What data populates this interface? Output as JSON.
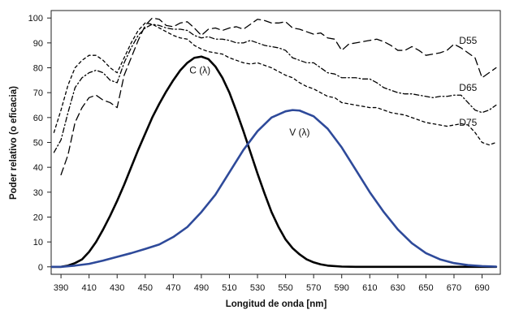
{
  "chart_data": {
    "type": "line",
    "title": "",
    "xlabel": "Longitud de onda [nm]",
    "ylabel": "Poder relativo (o eficacia)",
    "xlim": [
      383,
      703
    ],
    "ylim": [
      -3,
      103
    ],
    "grid": false,
    "legend": "none",
    "x_ticks": [
      390,
      410,
      430,
      450,
      470,
      490,
      510,
      530,
      550,
      570,
      590,
      610,
      630,
      650,
      670,
      690
    ],
    "y_ticks": [
      0,
      10,
      20,
      30,
      40,
      50,
      60,
      70,
      80,
      90,
      100
    ],
    "annotations": [
      {
        "id": "C",
        "text": "C (λ)",
        "x": 489,
        "y": 79
      },
      {
        "id": "V",
        "text": "V (λ)",
        "x": 560,
        "y": 54
      },
      {
        "id": "D55",
        "text": "D55",
        "x": 680,
        "y": 91
      },
      {
        "id": "D65",
        "text": "D65",
        "x": 680,
        "y": 72
      },
      {
        "id": "D75",
        "text": "D75",
        "x": 680,
        "y": 58
      }
    ],
    "series": [
      {
        "id": "C",
        "color": "#000000",
        "dash": "solid",
        "x": [
          380,
          390,
          395,
          400,
          405,
          410,
          415,
          420,
          425,
          430,
          435,
          440,
          445,
          450,
          455,
          460,
          465,
          470,
          475,
          480,
          485,
          490,
          495,
          500,
          505,
          510,
          515,
          520,
          525,
          530,
          535,
          540,
          545,
          550,
          555,
          560,
          565,
          570,
          575,
          580,
          590,
          600,
          620,
          650,
          680,
          700
        ],
        "y": [
          0,
          0,
          0.5,
          1.5,
          3,
          6,
          10,
          15,
          20.5,
          26.5,
          33,
          40,
          47,
          53.5,
          60,
          65.5,
          70.5,
          75,
          79,
          82,
          84,
          84.5,
          83.5,
          80.5,
          76,
          70,
          62.5,
          54.5,
          46,
          37.5,
          29.5,
          22,
          16,
          11,
          7.5,
          5,
          3,
          1.8,
          1,
          0.5,
          0.1,
          0,
          0,
          0,
          0,
          0
        ]
      },
      {
        "id": "V",
        "color": "#2e4a9a",
        "dash": "solid",
        "x": [
          380,
          390,
          400,
          410,
          420,
          430,
          440,
          450,
          460,
          470,
          480,
          490,
          500,
          510,
          520,
          530,
          540,
          550,
          555,
          560,
          570,
          580,
          590,
          600,
          610,
          620,
          630,
          640,
          650,
          660,
          670,
          680,
          690,
          700
        ],
        "y": [
          0,
          0,
          0.5,
          1.2,
          2.5,
          4,
          5.5,
          7.2,
          9,
          12,
          16,
          22,
          29,
          38,
          47,
          54.5,
          60,
          62.5,
          63,
          62.8,
          60.5,
          55.5,
          48,
          39,
          30,
          22,
          15,
          9.5,
          5.5,
          3,
          1.5,
          0.7,
          0.3,
          0.1
        ]
      },
      {
        "id": "D55",
        "color": "#000000",
        "dash": "long-dash",
        "x": [
          390,
          395,
          400,
          405,
          410,
          415,
          420,
          425,
          430,
          435,
          440,
          445,
          450,
          455,
          460,
          465,
          470,
          475,
          480,
          485,
          490,
          495,
          500,
          505,
          510,
          515,
          520,
          525,
          530,
          535,
          540,
          545,
          550,
          555,
          560,
          565,
          570,
          575,
          580,
          585,
          590,
          595,
          600,
          605,
          610,
          615,
          620,
          625,
          630,
          635,
          640,
          645,
          650,
          655,
          660,
          665,
          670,
          675,
          680,
          685,
          690,
          695,
          700
        ],
        "y": [
          37,
          45,
          58,
          64,
          68,
          69,
          67,
          66,
          64,
          77,
          84,
          91,
          97,
          100,
          99.5,
          97,
          96.5,
          98,
          98.5,
          96,
          93,
          95.5,
          96,
          95,
          96,
          96.5,
          95.5,
          97.5,
          99.5,
          99,
          98,
          98,
          98.5,
          96,
          95.5,
          94.5,
          93.5,
          94,
          92,
          91.5,
          87,
          89.5,
          90,
          90.5,
          91,
          91.5,
          90.5,
          89,
          87,
          87,
          88.5,
          87,
          85,
          85.5,
          86,
          87,
          89.5,
          88,
          86,
          84,
          76,
          78,
          80
        ]
      },
      {
        "id": "D65",
        "color": "#000000",
        "dash": "dash-dot",
        "x": [
          385,
          390,
          395,
          400,
          405,
          410,
          415,
          420,
          425,
          430,
          435,
          440,
          445,
          450,
          455,
          460,
          465,
          470,
          475,
          480,
          485,
          490,
          495,
          500,
          505,
          510,
          515,
          520,
          525,
          530,
          535,
          540,
          545,
          550,
          555,
          560,
          565,
          570,
          575,
          580,
          585,
          590,
          595,
          600,
          605,
          610,
          615,
          620,
          625,
          630,
          635,
          640,
          645,
          650,
          655,
          660,
          665,
          670,
          675,
          680,
          685,
          690,
          695,
          700
        ],
        "y": [
          46,
          51,
          62,
          72,
          76,
          78,
          79,
          78,
          75,
          74,
          82,
          88,
          93,
          96,
          97.5,
          97,
          96,
          95.5,
          95.5,
          95,
          93,
          92,
          92.5,
          91.5,
          91.5,
          91,
          90,
          90,
          91,
          90,
          89,
          88.5,
          88,
          87,
          84,
          83,
          82,
          82,
          80,
          78,
          77.5,
          76,
          76,
          76,
          75.5,
          75.5,
          74,
          72,
          71,
          70,
          69.5,
          69.5,
          69,
          68.5,
          68,
          68.5,
          68.5,
          69,
          69,
          66,
          63,
          62,
          63,
          65
        ]
      },
      {
        "id": "D75",
        "color": "#000000",
        "dash": "short-dash",
        "x": [
          385,
          390,
          395,
          400,
          405,
          410,
          415,
          420,
          425,
          430,
          435,
          440,
          445,
          450,
          455,
          460,
          465,
          470,
          475,
          480,
          485,
          490,
          495,
          500,
          505,
          510,
          515,
          520,
          525,
          530,
          535,
          540,
          545,
          550,
          555,
          560,
          565,
          570,
          575,
          580,
          585,
          590,
          595,
          600,
          605,
          610,
          615,
          620,
          625,
          630,
          635,
          640,
          645,
          650,
          655,
          660,
          665,
          670,
          675,
          680,
          685,
          690,
          695,
          700
        ],
        "y": [
          54,
          63,
          73,
          80,
          83,
          85,
          85,
          83,
          80,
          78,
          84,
          90,
          95,
          98,
          97.5,
          96,
          94.5,
          93,
          92,
          91.5,
          89,
          87.5,
          86.5,
          86,
          85.5,
          84,
          83,
          82,
          81.5,
          82,
          81,
          80,
          78.5,
          77,
          76,
          74,
          72.5,
          71.5,
          70,
          68.5,
          68,
          66,
          65.5,
          65,
          64.5,
          64,
          64,
          63,
          62,
          61.5,
          61,
          60,
          59,
          58,
          57.5,
          57,
          56.5,
          57,
          57.5,
          57,
          54,
          50,
          49,
          50
        ]
      }
    ]
  }
}
